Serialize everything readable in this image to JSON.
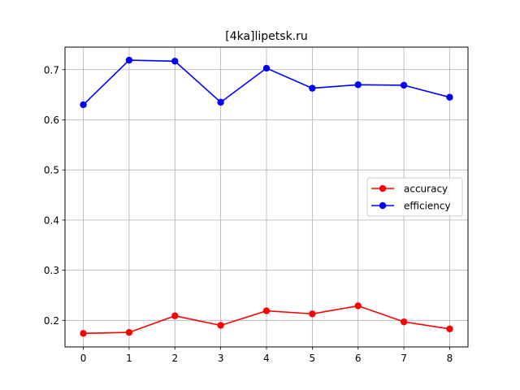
{
  "chart_data": {
    "type": "line",
    "title": "[4ka]lipetsk.ru",
    "xlabel": "",
    "ylabel": "",
    "x": [
      0,
      1,
      2,
      3,
      4,
      5,
      6,
      7,
      8
    ],
    "xticks": [
      "0",
      "1",
      "2",
      "3",
      "4",
      "5",
      "6",
      "7",
      "8"
    ],
    "yticks": [
      "0.2",
      "0.3",
      "0.4",
      "0.5",
      "0.6",
      "0.7"
    ],
    "xlim": [
      -0.4,
      8.4
    ],
    "ylim": [
      0.147,
      0.745
    ],
    "grid": true,
    "legend_position": "center-right",
    "series": [
      {
        "name": "accuracy",
        "color": "#ff0000",
        "marker": "circle",
        "values": [
          0.174,
          0.176,
          0.209,
          0.19,
          0.219,
          0.213,
          0.229,
          0.197,
          0.183
        ]
      },
      {
        "name": "efficiency",
        "color": "#0000ff",
        "marker": "circle",
        "values": [
          0.63,
          0.719,
          0.717,
          0.635,
          0.703,
          0.663,
          0.67,
          0.669,
          0.645
        ]
      }
    ]
  }
}
